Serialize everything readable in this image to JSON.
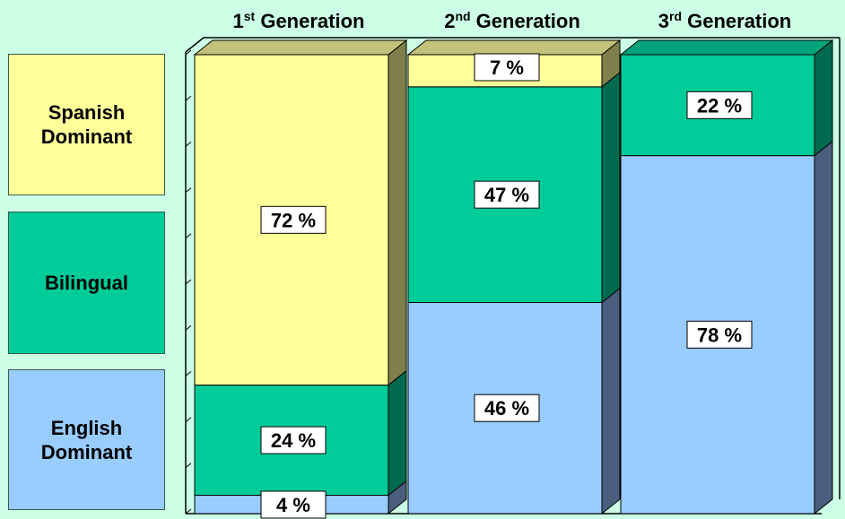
{
  "chart_data": {
    "type": "bar",
    "stacked": true,
    "three_d": true,
    "categories": [
      {
        "base": "1",
        "sup": "st",
        "rest": " Generation"
      },
      {
        "base": "2",
        "sup": "nd",
        "rest": " Generation"
      },
      {
        "base": "3",
        "sup": "rd",
        "rest": " Generation"
      }
    ],
    "series": [
      {
        "name": "English Dominant",
        "values": [
          4,
          46,
          78
        ],
        "labels": [
          "4 %",
          "46 %",
          "78 %"
        ],
        "color": "#99ccff",
        "side_color": "#4a5f7e",
        "top_color": "#7ea6cc"
      },
      {
        "name": "Bilingual",
        "values": [
          24,
          47,
          22
        ],
        "labels": [
          "24 %",
          "47 %",
          "22 %"
        ],
        "color": "#00cc99",
        "side_color": "#006a4e",
        "top_color": "#00a37a"
      },
      {
        "name": "Spanish Dominant",
        "values": [
          72,
          7,
          0
        ],
        "labels": [
          "72 %",
          "7 %",
          ""
        ],
        "color": "#ffff99",
        "side_color": "#7f7f4c",
        "top_color": "#c2c27a"
      }
    ],
    "ylim": [
      0,
      100
    ],
    "legend": "left"
  },
  "legend": {
    "spanish": "Spanish\nDominant",
    "bilingual": "Bilingual",
    "english": "English\nDominant"
  },
  "colors": {
    "background": "#ccffe6",
    "frame": "#000000"
  }
}
